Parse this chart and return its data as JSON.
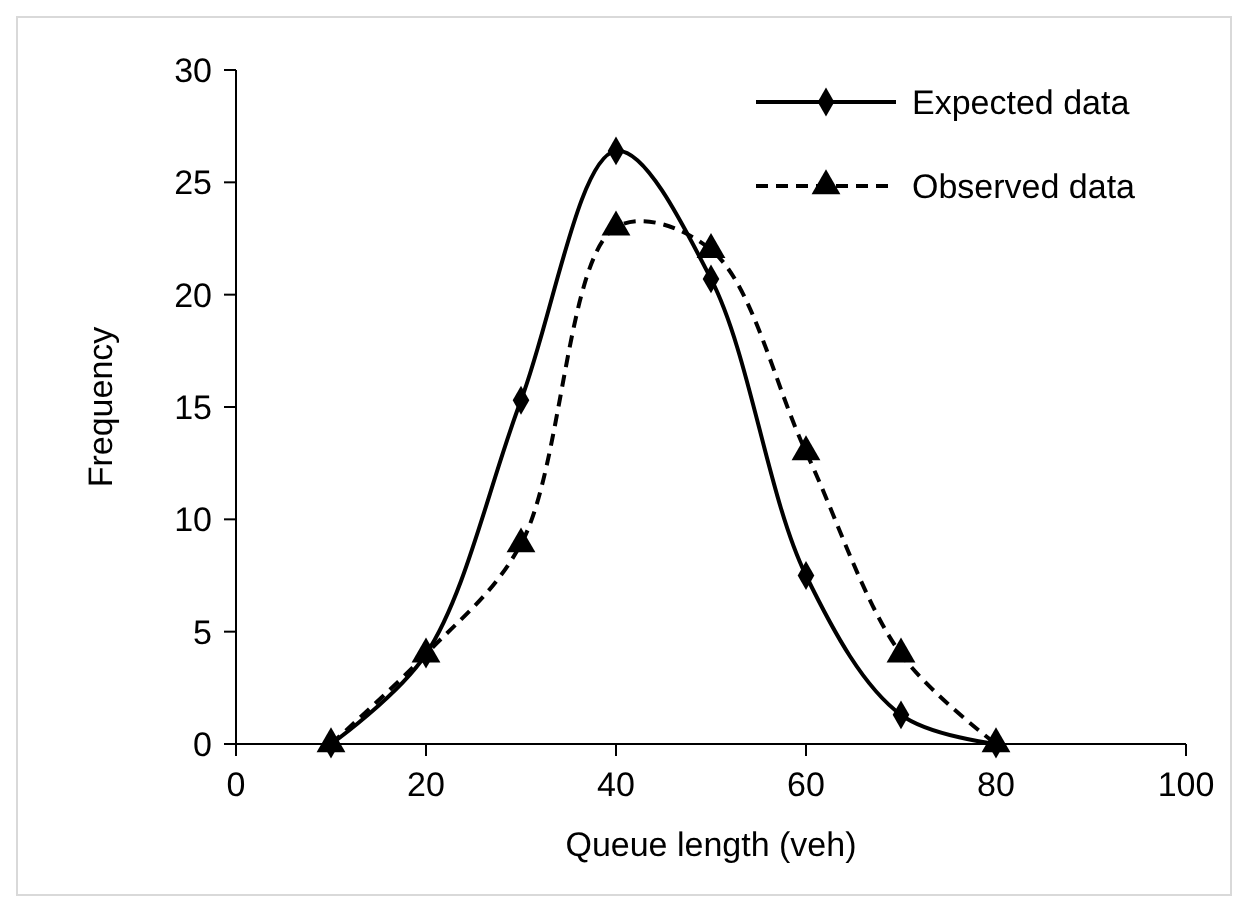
{
  "chart_data": {
    "type": "line",
    "xlabel": "Queue length (veh)",
    "ylabel": "Frequency",
    "x": [
      10,
      20,
      30,
      40,
      50,
      60,
      70,
      80
    ],
    "series": [
      {
        "name": "Expected data",
        "color": "#000000",
        "marker": "diamond",
        "line_style": "solid",
        "values": [
          0,
          4,
          15.3,
          26.4,
          20.7,
          7.5,
          1.3,
          0
        ]
      },
      {
        "name": "Observed data",
        "color": "#000000",
        "marker": "triangle",
        "line_style": "dashed",
        "values": [
          0,
          4,
          8.9,
          23,
          22,
          13,
          4,
          0
        ]
      }
    ],
    "xlim": [
      0,
      100
    ],
    "xticks": [
      0,
      20,
      40,
      60,
      80,
      100
    ],
    "ylim": [
      0,
      30
    ],
    "yticks": [
      0,
      5,
      10,
      15,
      20,
      25,
      30
    ],
    "grid": false,
    "legend": "top right"
  }
}
